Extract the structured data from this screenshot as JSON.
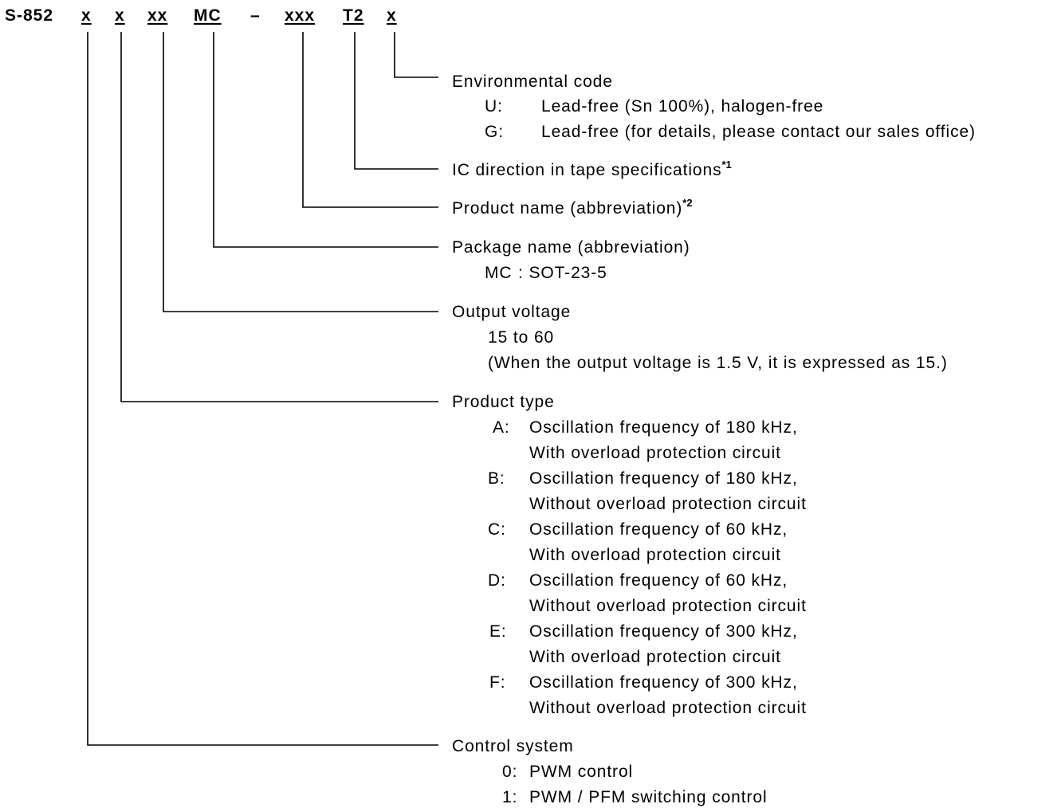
{
  "part_number": {
    "prefix": "S-852",
    "segments": [
      "x",
      "x",
      "xx",
      "MC",
      "–",
      "xxx",
      "T2",
      "x"
    ]
  },
  "descriptions": [
    {
      "title": "Environmental code",
      "items": [
        {
          "key": "U:",
          "text": "Lead-free (Sn 100%), halogen-free"
        },
        {
          "key": "G:",
          "text": "Lead-free (for details, please contact our sales office)"
        }
      ]
    },
    {
      "title": "IC direction in tape specifications",
      "note": "*1"
    },
    {
      "title": "Product name (abbreviation)",
      "note": "*2"
    },
    {
      "title": "Package name (abbreviation)",
      "items": [
        {
          "key": "MC",
          "text": ": SOT-23-5"
        }
      ]
    },
    {
      "title": "Output voltage",
      "lines": [
        "15 to 60",
        "(When the output voltage is 1.5 V, it is expressed as 15.)"
      ]
    },
    {
      "title": "Product type",
      "items": [
        {
          "key": "A:",
          "text": "Oscillation frequency of 180 kHz,",
          "text2": "With overload protection circuit"
        },
        {
          "key": "B:",
          "text": "Oscillation frequency of 180 kHz,",
          "text2": "Without overload protection circuit"
        },
        {
          "key": "C:",
          "text": "Oscillation frequency of 60 kHz,",
          "text2": "With overload protection circuit"
        },
        {
          "key": "D:",
          "text": "Oscillation frequency of 60 kHz,",
          "text2": "Without overload protection circuit"
        },
        {
          "key": "E:",
          "text": "Oscillation frequency of 300 kHz,",
          "text2": "With overload protection circuit"
        },
        {
          "key": "F:",
          "text": "Oscillation frequency of 300 kHz,",
          "text2": "Without overload protection circuit"
        }
      ]
    },
    {
      "title": "Control system",
      "items": [
        {
          "key": "0:",
          "text": "PWM control"
        },
        {
          "key": "1:",
          "text": "PWM / PFM switching control"
        }
      ]
    }
  ]
}
